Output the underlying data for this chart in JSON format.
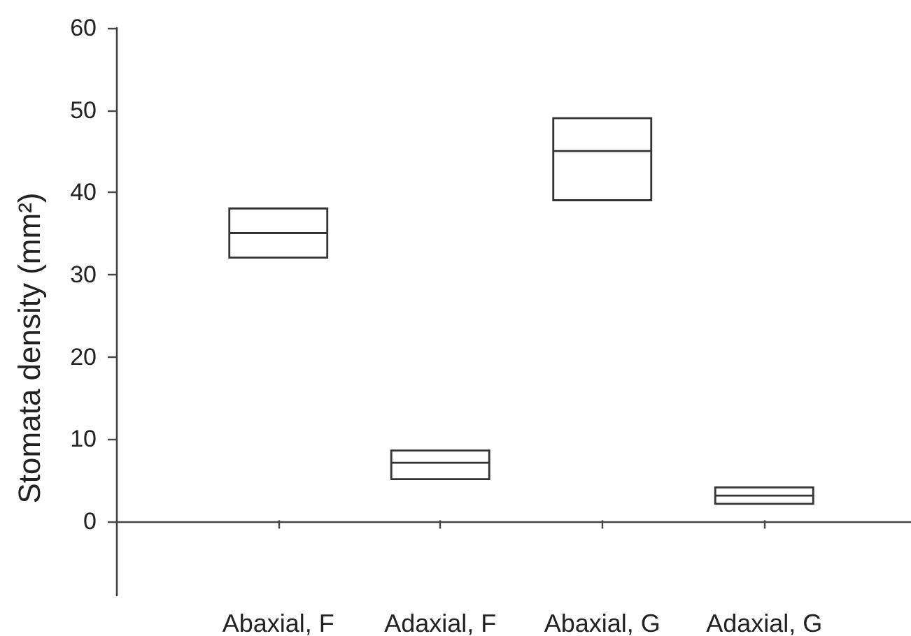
{
  "chart_data": {
    "type": "box",
    "ylabel": "Stomata density (mm²)",
    "categories": [
      "Abaxial, F",
      "Adaxial, F",
      "Abaxial, G",
      "Adaxial, G"
    ],
    "boxes": [
      {
        "low": 32,
        "q1": 32,
        "median": 35,
        "q3": 38,
        "high": 38
      },
      {
        "low": 5,
        "q1": 5,
        "median": 7,
        "q3": 8.5,
        "high": 8.5
      },
      {
        "low": 39,
        "q1": 39,
        "median": 45,
        "q3": 49,
        "high": 49
      },
      {
        "low": 2,
        "q1": 2,
        "median": 3,
        "q3": 4,
        "high": 4
      }
    ],
    "color": "#333333",
    "ylim": [
      -9,
      60
    ],
    "yticks": [
      0,
      10,
      20,
      30,
      40,
      50,
      60
    ]
  }
}
